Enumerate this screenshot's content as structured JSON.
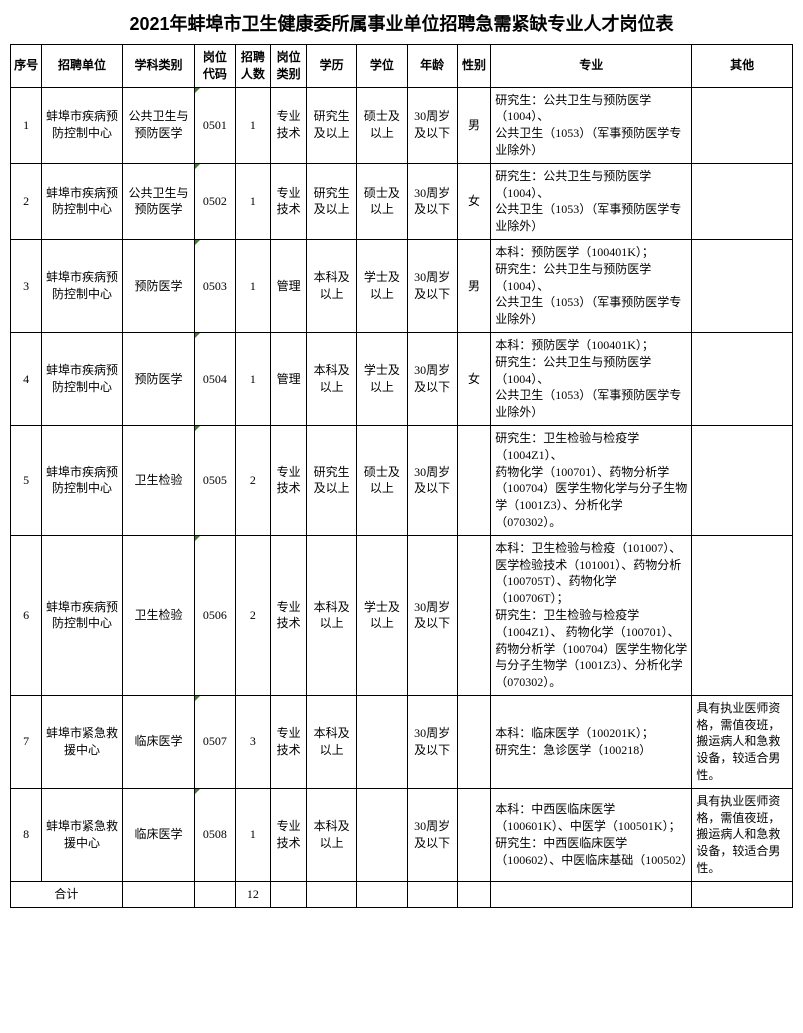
{
  "title": "2021年蚌埠市卫生健康委所属事业单位招聘急需紧缺专业人才岗位表",
  "headers": {
    "seq": "序号",
    "unit": "招聘单位",
    "subject": "学科类别",
    "code": "岗位代码",
    "count": "招聘人数",
    "category": "岗位类别",
    "edu": "学历",
    "degree": "学位",
    "age": "年龄",
    "gender": "性别",
    "major": "专业",
    "other": "其他"
  },
  "rows": [
    {
      "seq": "1",
      "unit": "蚌埠市疾病预防控制中心",
      "subject": "公共卫生与预防医学",
      "code": "0501",
      "count": "1",
      "category": "专业技术",
      "edu": "研究生及以上",
      "degree": "硕士及以上",
      "age": "30周岁及以下",
      "gender": "男",
      "major": "研究生：公共卫生与预防医学（1004）、\n公共卫生（1053）（军事预防医学专业除外）",
      "other": ""
    },
    {
      "seq": "2",
      "unit": "蚌埠市疾病预防控制中心",
      "subject": "公共卫生与预防医学",
      "code": "0502",
      "count": "1",
      "category": "专业技术",
      "edu": "研究生及以上",
      "degree": "硕士及以上",
      "age": "30周岁及以下",
      "gender": "女",
      "major": "研究生：公共卫生与预防医学（1004）、\n公共卫生（1053）（军事预防医学专业除外）",
      "other": ""
    },
    {
      "seq": "3",
      "unit": "蚌埠市疾病预防控制中心",
      "subject": "预防医学",
      "code": "0503",
      "count": "1",
      "category": "管理",
      "edu": "本科及以上",
      "degree": "学士及以上",
      "age": "30周岁及以下",
      "gender": "男",
      "major": "本科：预防医学（100401K）；\n研究生：公共卫生与预防医学（1004）、\n公共卫生（1053）（军事预防医学专业除外）",
      "other": ""
    },
    {
      "seq": "4",
      "unit": "蚌埠市疾病预防控制中心",
      "subject": "预防医学",
      "code": "0504",
      "count": "1",
      "category": "管理",
      "edu": "本科及以上",
      "degree": "学士及以上",
      "age": "30周岁及以下",
      "gender": "女",
      "major": "本科：预防医学（100401K）；\n研究生：公共卫生与预防医学（1004）、\n公共卫生（1053）（军事预防医学专业除外）",
      "other": ""
    },
    {
      "seq": "5",
      "unit": "蚌埠市疾病预防控制中心",
      "subject": "卫生检验",
      "code": "0505",
      "count": "2",
      "category": "专业技术",
      "edu": "研究生及以上",
      "degree": "硕士及以上",
      "age": "30周岁及以下",
      "gender": "",
      "major": "研究生：卫生检验与检疫学（1004Z1）、\n药物化学（100701）、药物分析学（100704）医学生物化学与分子生物学（1001Z3）、分析化学（070302）。",
      "other": ""
    },
    {
      "seq": "6",
      "unit": "蚌埠市疾病预防控制中心",
      "subject": "卫生检验",
      "code": "0506",
      "count": "2",
      "category": "专业技术",
      "edu": "本科及以上",
      "degree": "学士及以上",
      "age": "30周岁及以下",
      "gender": "",
      "major": "本科：卫生检验与检疫（101007）、医学检验技术（101001）、药物分析（100705T）、药物化学（100706T）；\n研究生：卫生检验与检疫学（1004Z1）、 药物化学（100701）、药物分析学（100704）医学生物化学与分子生物学（1001Z3）、分析化学（070302）。",
      "other": ""
    },
    {
      "seq": "7",
      "unit": "蚌埠市紧急救援中心",
      "subject": "临床医学",
      "code": "0507",
      "count": "3",
      "category": "专业技术",
      "edu": "本科及以上",
      "degree": "",
      "age": "30周岁及以下",
      "gender": "",
      "major": "本科：临床医学（100201K）；\n研究生：急诊医学（100218）",
      "other": "具有执业医师资格，需值夜班，搬运病人和急救设备，较适合男性。"
    },
    {
      "seq": "8",
      "unit": "蚌埠市紧急救援中心",
      "subject": "临床医学",
      "code": "0508",
      "count": "1",
      "category": "专业技术",
      "edu": "本科及以上",
      "degree": "",
      "age": "30周岁及以下",
      "gender": "",
      "major": "本科：中西医临床医学（100601K）、中医学（100501K）；\n研究生：中西医临床医学（100602）、中医临床基础（100502）",
      "other": "具有执业医师资格，需值夜班，搬运病人和急救设备，较适合男性。"
    }
  ],
  "total": {
    "label": "合计",
    "count": "12"
  },
  "styling": {
    "title_fontsize": 18,
    "cell_fontsize": 12,
    "border_color": "#000000",
    "background_color": "#ffffff",
    "corner_marker_color": "#4a7a3a",
    "font_family_title": "SimHei",
    "font_family_body": "SimSun"
  }
}
